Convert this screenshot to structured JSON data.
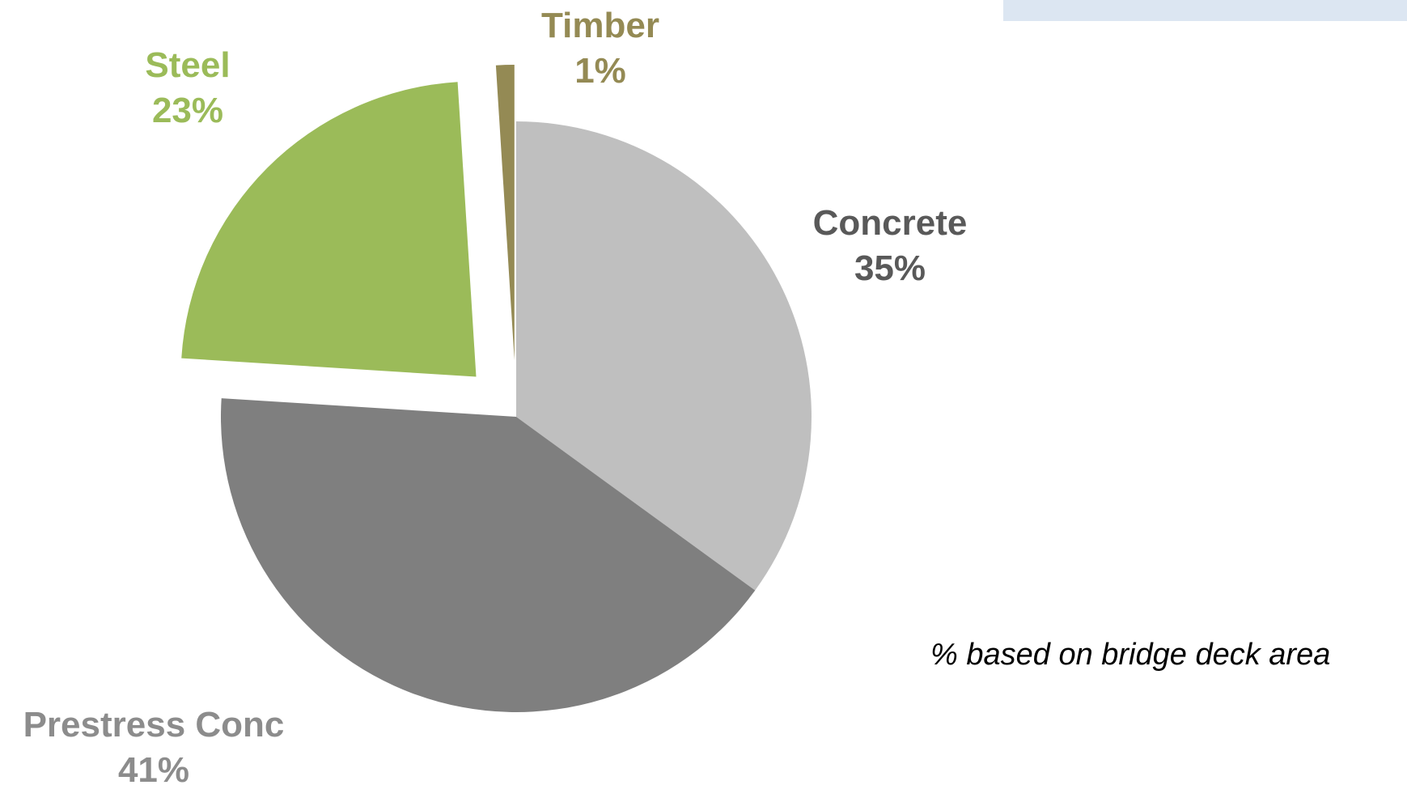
{
  "chart_data": {
    "type": "pie",
    "slices": [
      {
        "name": "Concrete",
        "value": 35,
        "label": "35%",
        "color": "#bfbfbf",
        "label_color": "#595959",
        "exploded": false
      },
      {
        "name": "Prestress Conc",
        "value": 41,
        "label": "41%",
        "color": "#7f7f7f",
        "label_color": "#8c8c8c",
        "exploded": false
      },
      {
        "name": "Steel",
        "value": 23,
        "label": "23%",
        "color": "#9bbb59",
        "label_color": "#9bbb59",
        "exploded": true
      },
      {
        "name": "Timber",
        "value": 1,
        "label": "1%",
        "color": "#948a54",
        "label_color": "#948a54",
        "exploded": true
      }
    ],
    "start_angle_deg": 0,
    "direction": "clockwise",
    "legend": "none"
  },
  "footnote": "% based on bridge deck area",
  "corner_box": {
    "text": "",
    "color": "#dce6f2"
  }
}
